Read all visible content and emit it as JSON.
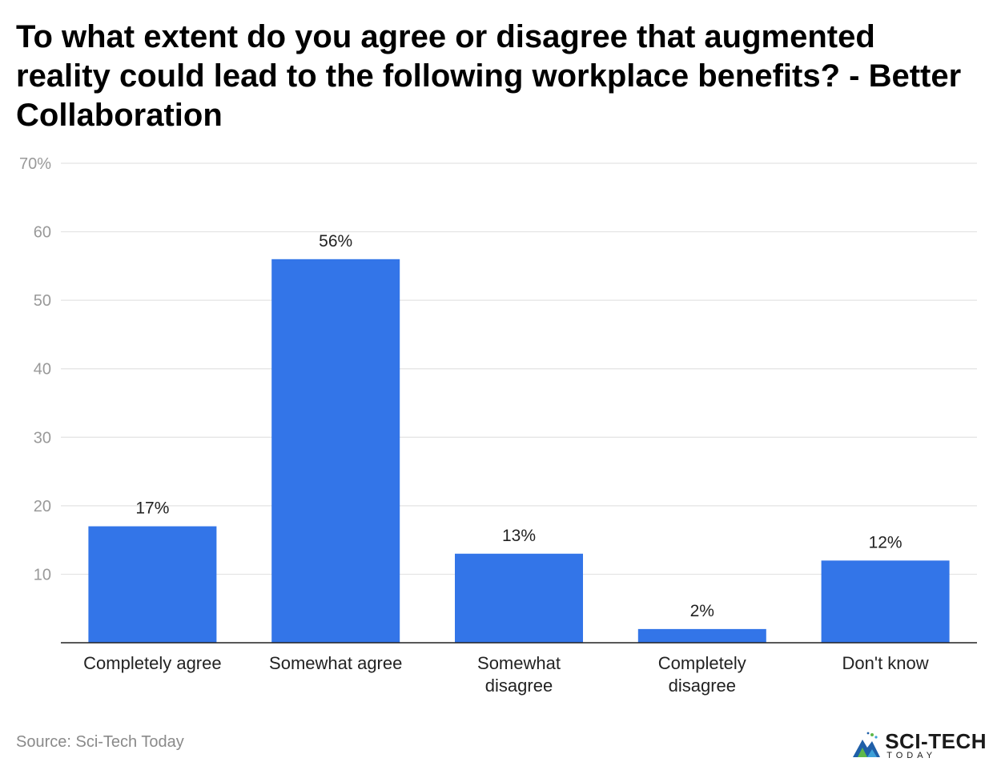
{
  "chart_data": {
    "type": "bar",
    "title": "To what extent do you agree or disagree that augmented reality could lead to the following workplace benefits? - Better Collaboration",
    "categories": [
      "Completely agree",
      "Somewhat agree",
      "Somewhat disagree",
      "Completely disagree",
      "Don't know"
    ],
    "category_lines": [
      [
        "Completely agree"
      ],
      [
        "Somewhat agree"
      ],
      [
        "Somewhat",
        "disagree"
      ],
      [
        "Completely",
        "disagree"
      ],
      [
        "Don't know"
      ]
    ],
    "values": [
      17,
      56,
      13,
      2,
      12
    ],
    "data_labels": [
      "17%",
      "56%",
      "13%",
      "2%",
      "12%"
    ],
    "ylim": [
      0,
      70
    ],
    "yticks": [
      10,
      20,
      30,
      40,
      50,
      60,
      70
    ],
    "ytick_labels": [
      "10",
      "20",
      "30",
      "40",
      "50",
      "60",
      "70%"
    ],
    "xlabel": "",
    "ylabel": "",
    "grid": true,
    "legend": "none",
    "bar_color": "#3375e8"
  },
  "source": "Source: Sci-Tech Today",
  "logo": {
    "main": "SCI-TECH",
    "sub": "TODAY"
  }
}
